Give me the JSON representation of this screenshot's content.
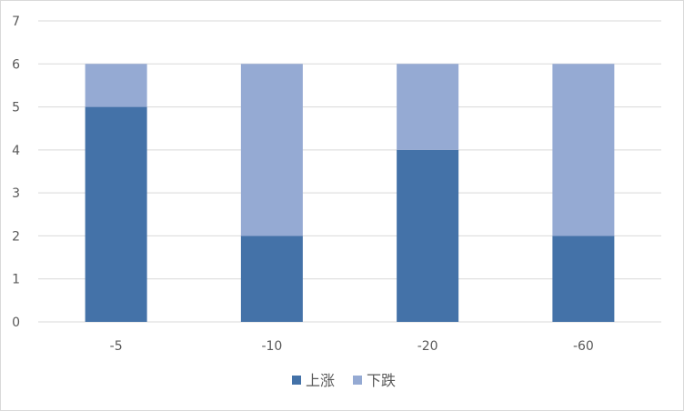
{
  "chart_data": {
    "type": "bar",
    "stacked": true,
    "categories": [
      "-5",
      "-10",
      "-20",
      "-60"
    ],
    "series": [
      {
        "name": "上涨",
        "values": [
          5,
          2,
          4,
          2
        ],
        "color": "#4472a8"
      },
      {
        "name": "下跌",
        "values": [
          1,
          4,
          2,
          4
        ],
        "color": "#95aad3"
      }
    ],
    "title": "",
    "xlabel": "",
    "ylabel": "",
    "ylim": [
      0,
      7
    ],
    "yticks": [
      "0",
      "1",
      "2",
      "3",
      "4",
      "5",
      "6",
      "7"
    ],
    "grid": true,
    "legend": "bottom-center"
  },
  "colors": {
    "grid": "#d9d9d9",
    "axis": "#d9d9d9",
    "text": "#595959"
  }
}
